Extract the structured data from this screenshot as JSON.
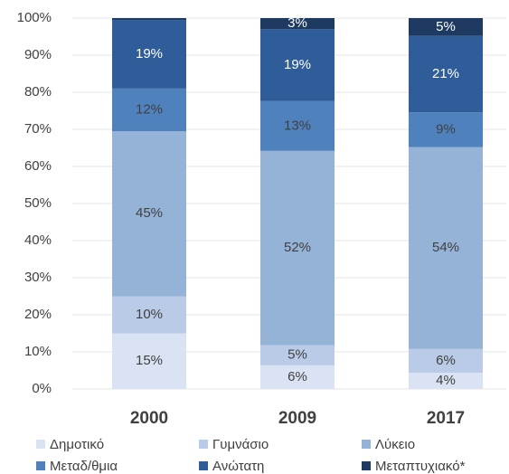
{
  "chart_data": {
    "type": "stacked_bar",
    "categories": [
      "2000",
      "2009",
      "2017"
    ],
    "series": [
      {
        "name": "Δημοτικό",
        "color": "#dae3f3",
        "values": [
          15,
          6.4,
          4.4
        ],
        "value_labels": [
          "15%",
          "6%",
          "4%"
        ]
      },
      {
        "name": "Γυμνάσιο",
        "color": "#b9cbe6",
        "values": [
          10,
          5.4,
          6.4
        ],
        "value_labels": [
          "10%",
          "5%",
          "6%"
        ]
      },
      {
        "name": "Λύκειο",
        "color": "#95b3d7",
        "values": [
          44.5,
          52.4,
          54.4
        ],
        "value_labels": [
          "45%",
          "52%",
          "54%"
        ]
      },
      {
        "name": "Μεταδ/θμια",
        "color": "#4f81bd",
        "values": [
          11.5,
          13.4,
          9.4
        ],
        "value_labels": [
          "12%",
          "13%",
          "9%"
        ]
      },
      {
        "name": "Ανώτατη",
        "color": "#2f5d99",
        "values": [
          18.5,
          19.4,
          20.6
        ],
        "value_labels": [
          "19%",
          "19%",
          "21%"
        ]
      },
      {
        "name": "Μεταπτυχιακό*",
        "color": "#1f3a60",
        "values": [
          0.5,
          3,
          4.8
        ],
        "value_labels": [
          null,
          "3%",
          "5%"
        ]
      }
    ],
    "ylim": [
      0,
      100
    ],
    "yticks": [
      {
        "value": 0,
        "label": "0%"
      },
      {
        "value": 10,
        "label": "10%"
      },
      {
        "value": 20,
        "label": "20%"
      },
      {
        "value": 30,
        "label": "30%"
      },
      {
        "value": 40,
        "label": "40%"
      },
      {
        "value": 50,
        "label": "50%"
      },
      {
        "value": 60,
        "label": "60%"
      },
      {
        "value": 70,
        "label": "70%"
      },
      {
        "value": 80,
        "label": "80%"
      },
      {
        "value": 90,
        "label": "90%"
      },
      {
        "value": 100,
        "label": "100%"
      }
    ],
    "grid": true,
    "legend": "bottom"
  }
}
